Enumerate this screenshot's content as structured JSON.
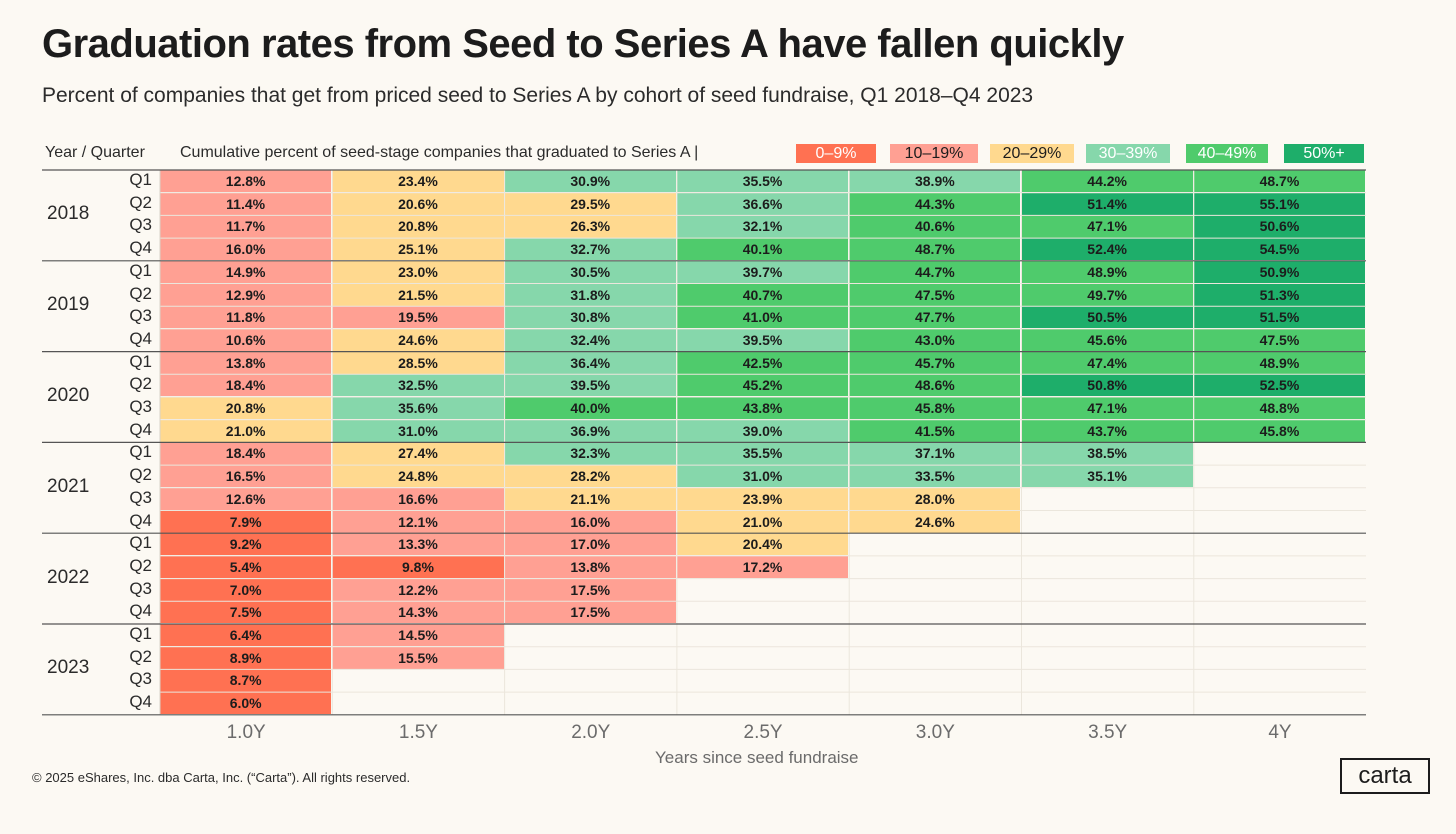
{
  "title": "Graduation rates from Seed to Series A have fallen quickly",
  "subtitle": "Percent of companies that get from priced seed to Series A by cohort of seed fundraise, Q1 2018–Q4 2023",
  "header_year_quarter": "Year / Quarter",
  "header_cumulative": "Cumulative percent of seed-stage companies that graduated to Series A |",
  "legend": [
    {
      "label": "0–9%",
      "color": "#ff7152",
      "text_color": "#ffffff"
    },
    {
      "label": "10–19%",
      "color": "#ffa093",
      "text_color": "#1c1c1c"
    },
    {
      "label": "20–29%",
      "color": "#ffd98f",
      "text_color": "#1c1c1c"
    },
    {
      "label": "30–39%",
      "color": "#86d7ab",
      "text_color": "#ffffff"
    },
    {
      "label": "40–49%",
      "color": "#4fcb6c",
      "text_color": "#ffffff"
    },
    {
      "label": "50%+",
      "color": "#1eae6a",
      "text_color": "#ffffff"
    }
  ],
  "x_axis_title": "Years since seed fundraise",
  "copyright": "© 2025 eShares, Inc. dba Carta, Inc. (“Carta”). All rights reserved.",
  "brand": "carta",
  "chart_data": {
    "type": "heatmap",
    "x": [
      "1.0Y",
      "1.5Y",
      "2.0Y",
      "2.5Y",
      "3.0Y",
      "3.5Y",
      "4Y"
    ],
    "years": [
      "2018",
      "2019",
      "2020",
      "2021",
      "2022",
      "2023"
    ],
    "quarters": [
      "Q1",
      "Q2",
      "Q3",
      "Q4"
    ],
    "rows": [
      {
        "year": "2018",
        "quarter": "Q1",
        "values": [
          12.8,
          23.4,
          30.9,
          35.5,
          38.9,
          44.2,
          48.7
        ]
      },
      {
        "year": "2018",
        "quarter": "Q2",
        "values": [
          11.4,
          20.6,
          29.5,
          36.6,
          44.3,
          51.4,
          55.1
        ]
      },
      {
        "year": "2018",
        "quarter": "Q3",
        "values": [
          11.7,
          20.8,
          26.3,
          32.1,
          40.6,
          47.1,
          50.6
        ]
      },
      {
        "year": "2018",
        "quarter": "Q4",
        "values": [
          16.0,
          25.1,
          32.7,
          40.1,
          48.7,
          52.4,
          54.5
        ]
      },
      {
        "year": "2019",
        "quarter": "Q1",
        "values": [
          14.9,
          23.0,
          30.5,
          39.7,
          44.7,
          48.9,
          50.9
        ]
      },
      {
        "year": "2019",
        "quarter": "Q2",
        "values": [
          12.9,
          21.5,
          31.8,
          40.7,
          47.5,
          49.7,
          51.3
        ]
      },
      {
        "year": "2019",
        "quarter": "Q3",
        "values": [
          11.8,
          19.5,
          30.8,
          41.0,
          47.7,
          50.5,
          51.5
        ]
      },
      {
        "year": "2019",
        "quarter": "Q4",
        "values": [
          10.6,
          24.6,
          32.4,
          39.5,
          43.0,
          45.6,
          47.5
        ]
      },
      {
        "year": "2020",
        "quarter": "Q1",
        "values": [
          13.8,
          28.5,
          36.4,
          42.5,
          45.7,
          47.4,
          48.9
        ]
      },
      {
        "year": "2020",
        "quarter": "Q2",
        "values": [
          18.4,
          32.5,
          39.5,
          45.2,
          48.6,
          50.8,
          52.5
        ]
      },
      {
        "year": "2020",
        "quarter": "Q3",
        "values": [
          20.8,
          35.6,
          40.0,
          43.8,
          45.8,
          47.1,
          48.8
        ]
      },
      {
        "year": "2020",
        "quarter": "Q4",
        "values": [
          21.0,
          31.0,
          36.9,
          39.0,
          41.5,
          43.7,
          45.8
        ]
      },
      {
        "year": "2021",
        "quarter": "Q1",
        "values": [
          18.4,
          27.4,
          32.3,
          35.5,
          37.1,
          38.5,
          null
        ]
      },
      {
        "year": "2021",
        "quarter": "Q2",
        "values": [
          16.5,
          24.8,
          28.2,
          31.0,
          33.5,
          35.1,
          null
        ]
      },
      {
        "year": "2021",
        "quarter": "Q3",
        "values": [
          12.6,
          16.6,
          21.1,
          23.9,
          28.0,
          null,
          null
        ]
      },
      {
        "year": "2021",
        "quarter": "Q4",
        "values": [
          7.9,
          12.1,
          16.0,
          21.0,
          24.6,
          null,
          null
        ]
      },
      {
        "year": "2022",
        "quarter": "Q1",
        "values": [
          9.2,
          13.3,
          17.0,
          20.4,
          null,
          null,
          null
        ]
      },
      {
        "year": "2022",
        "quarter": "Q2",
        "values": [
          5.4,
          9.8,
          13.8,
          17.2,
          null,
          null,
          null
        ]
      },
      {
        "year": "2022",
        "quarter": "Q3",
        "values": [
          7.0,
          12.2,
          17.5,
          null,
          null,
          null,
          null
        ]
      },
      {
        "year": "2022",
        "quarter": "Q4",
        "values": [
          7.5,
          14.3,
          17.5,
          null,
          null,
          null,
          null
        ]
      },
      {
        "year": "2023",
        "quarter": "Q1",
        "values": [
          6.4,
          14.5,
          null,
          null,
          null,
          null,
          null
        ]
      },
      {
        "year": "2023",
        "quarter": "Q2",
        "values": [
          8.9,
          15.5,
          null,
          null,
          null,
          null,
          null
        ]
      },
      {
        "year": "2023",
        "quarter": "Q3",
        "values": [
          8.7,
          null,
          null,
          null,
          null,
          null,
          null
        ]
      },
      {
        "year": "2023",
        "quarter": "Q4",
        "values": [
          6.0,
          null,
          null,
          null,
          null,
          null,
          null
        ]
      }
    ]
  }
}
